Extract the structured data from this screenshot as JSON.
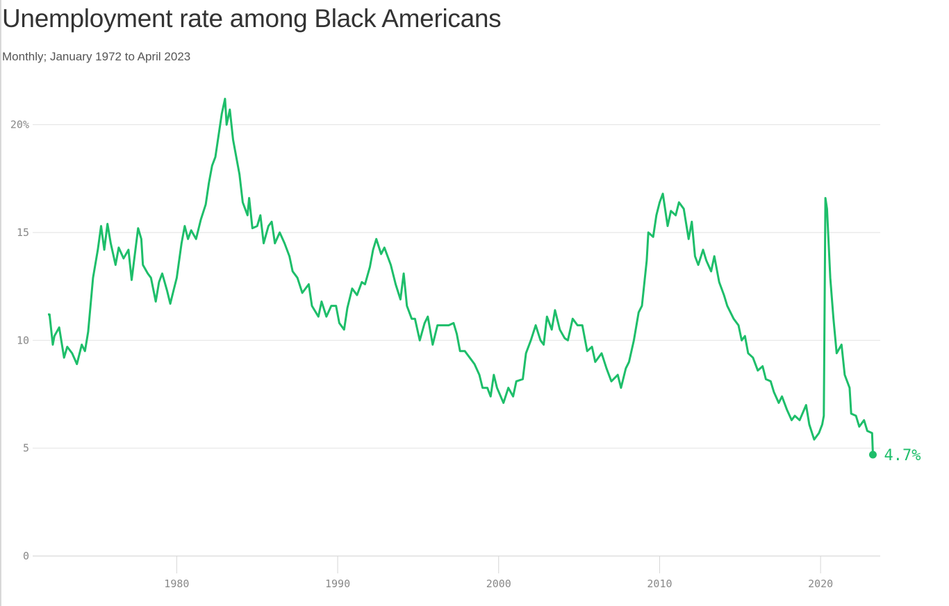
{
  "title": "Unemployment rate among Black Americans",
  "subtitle": "Monthly; January 1972 to April 2023",
  "chart_data": {
    "type": "line",
    "title": "Unemployment rate among Black Americans",
    "subtitle": "Monthly; January 1972 to April 2023",
    "xlabel": "",
    "ylabel": "",
    "xlim": [
      1972,
      2023.3
    ],
    "ylim": [
      0,
      21.5
    ],
    "grid": "horizontal",
    "line_color": "#1ebe6a",
    "x_ticks": [
      {
        "value": 1980,
        "label": "1980"
      },
      {
        "value": 1990,
        "label": "1990"
      },
      {
        "value": 2000,
        "label": "2000"
      },
      {
        "value": 2010,
        "label": "2010"
      },
      {
        "value": 2020,
        "label": "2020"
      }
    ],
    "y_ticks": [
      {
        "value": 0,
        "label": "0"
      },
      {
        "value": 5,
        "label": "5"
      },
      {
        "value": 10,
        "label": "10"
      },
      {
        "value": 15,
        "label": "15"
      },
      {
        "value": 20,
        "label": "20%"
      }
    ],
    "end_label": "4.7%",
    "series": [
      {
        "x": [
          1972.0,
          1972.1,
          1972.3,
          1972.4,
          1972.7,
          1973.0,
          1973.2,
          1973.5,
          1973.8,
          1974.1,
          1974.3,
          1974.5,
          1974.8,
          1975.1,
          1975.3,
          1975.5,
          1975.7,
          1975.9,
          1976.2,
          1976.4,
          1976.7,
          1977.0,
          1977.2,
          1977.6,
          1977.8,
          1977.9,
          1978.2,
          1978.4,
          1978.7,
          1978.9,
          1979.1,
          1979.4,
          1979.6,
          1979.8,
          1980.0,
          1980.3,
          1980.5,
          1980.7,
          1980.9,
          1981.2,
          1981.5,
          1981.8,
          1982.0,
          1982.2,
          1982.4,
          1982.7,
          1982.8,
          1983.0,
          1983.1,
          1983.3,
          1983.5,
          1983.9,
          1984.1,
          1984.4,
          1984.5,
          1984.7,
          1985.0,
          1985.2,
          1985.4,
          1985.7,
          1985.9,
          1986.1,
          1986.4,
          1986.7,
          1987.0,
          1987.2,
          1987.5,
          1987.8,
          1988.2,
          1988.4,
          1988.8,
          1989.0,
          1989.3,
          1989.6,
          1989.9,
          1990.1,
          1990.4,
          1990.6,
          1990.9,
          1991.2,
          1991.5,
          1991.7,
          1992.0,
          1992.2,
          1992.4,
          1992.7,
          1992.9,
          1993.3,
          1993.6,
          1993.9,
          1994.1,
          1994.3,
          1994.6,
          1994.8,
          1995.1,
          1995.4,
          1995.6,
          1995.9,
          1996.2,
          1996.6,
          1996.9,
          1997.2,
          1997.4,
          1997.6,
          1997.9,
          1998.2,
          1998.5,
          1998.8,
          1999.0,
          1999.3,
          1999.5,
          1999.7,
          1999.9,
          2000.3,
          2000.6,
          2000.9,
          2001.1,
          2001.5,
          2001.7,
          2002.0,
          2002.3,
          2002.6,
          2002.8,
          2003.0,
          2003.3,
          2003.5,
          2003.8,
          2004.1,
          2004.3,
          2004.6,
          2004.9,
          2005.2,
          2005.5,
          2005.8,
          2006.0,
          2006.4,
          2006.7,
          2007.0,
          2007.4,
          2007.6,
          2007.9,
          2008.1,
          2008.4,
          2008.7,
          2008.9,
          2009.2,
          2009.3,
          2009.6,
          2009.8,
          2010.0,
          2010.2,
          2010.5,
          2010.7,
          2011.0,
          2011.2,
          2011.5,
          2011.8,
          2012.0,
          2012.2,
          2012.4,
          2012.7,
          2012.9,
          2013.2,
          2013.4,
          2013.7,
          2014.0,
          2014.2,
          2014.6,
          2014.9,
          2015.1,
          2015.3,
          2015.5,
          2015.8,
          2016.1,
          2016.4,
          2016.6,
          2016.9,
          2017.1,
          2017.4,
          2017.6,
          2017.9,
          2018.2,
          2018.4,
          2018.7,
          2019.1,
          2019.3,
          2019.6,
          2019.9,
          2020.1,
          2020.2,
          2020.3,
          2020.4,
          2020.6,
          2020.8,
          2021.0,
          2021.3,
          2021.5,
          2021.8,
          2021.9,
          2022.2,
          2022.4,
          2022.7,
          2022.9,
          2023.2,
          2023.25
        ],
        "y": [
          11.2,
          11.2,
          9.8,
          10.2,
          10.6,
          9.2,
          9.7,
          9.4,
          8.9,
          9.8,
          9.5,
          10.4,
          12.9,
          14.2,
          15.3,
          14.2,
          15.4,
          14.5,
          13.5,
          14.3,
          13.8,
          14.2,
          12.8,
          15.2,
          14.7,
          13.5,
          13.1,
          12.9,
          11.8,
          12.7,
          13.1,
          12.3,
          11.7,
          12.3,
          12.9,
          14.5,
          15.3,
          14.7,
          15.1,
          14.7,
          15.6,
          16.3,
          17.3,
          18.1,
          18.5,
          20.0,
          20.5,
          21.2,
          20.0,
          20.7,
          19.3,
          17.7,
          16.4,
          15.8,
          16.6,
          15.2,
          15.3,
          15.8,
          14.5,
          15.3,
          15.5,
          14.5,
          15.0,
          14.5,
          13.9,
          13.2,
          12.9,
          12.2,
          12.6,
          11.6,
          11.1,
          11.8,
          11.1,
          11.6,
          11.6,
          10.8,
          10.5,
          11.5,
          12.4,
          12.1,
          12.7,
          12.6,
          13.4,
          14.2,
          14.7,
          14.0,
          14.3,
          13.5,
          12.6,
          11.9,
          13.1,
          11.6,
          11.0,
          11.0,
          10.0,
          10.8,
          11.1,
          9.8,
          10.7,
          10.7,
          10.7,
          10.8,
          10.3,
          9.5,
          9.5,
          9.2,
          8.9,
          8.4,
          7.8,
          7.8,
          7.4,
          8.4,
          7.8,
          7.1,
          7.8,
          7.4,
          8.1,
          8.2,
          9.4,
          10.0,
          10.7,
          10.0,
          9.8,
          11.1,
          10.5,
          11.4,
          10.5,
          10.1,
          10.0,
          11.0,
          10.7,
          10.7,
          9.5,
          9.7,
          9.0,
          9.4,
          8.7,
          8.1,
          8.4,
          7.8,
          8.7,
          9.0,
          10.0,
          11.3,
          11.6,
          13.7,
          15.0,
          14.8,
          15.8,
          16.4,
          16.8,
          15.3,
          16.0,
          15.8,
          16.4,
          16.1,
          14.7,
          15.5,
          13.9,
          13.5,
          14.2,
          13.7,
          13.2,
          13.9,
          12.7,
          12.1,
          11.6,
          11.0,
          10.7,
          10.0,
          10.2,
          9.4,
          9.2,
          8.6,
          8.8,
          8.2,
          8.1,
          7.6,
          7.1,
          7.4,
          6.8,
          6.3,
          6.5,
          6.3,
          7.0,
          6.1,
          5.4,
          5.7,
          6.1,
          6.5,
          16.6,
          16.1,
          12.9,
          11.0,
          9.4,
          9.8,
          8.4,
          7.8,
          6.6,
          6.5,
          6.0,
          6.3,
          5.8,
          5.7,
          4.7
        ]
      }
    ]
  }
}
